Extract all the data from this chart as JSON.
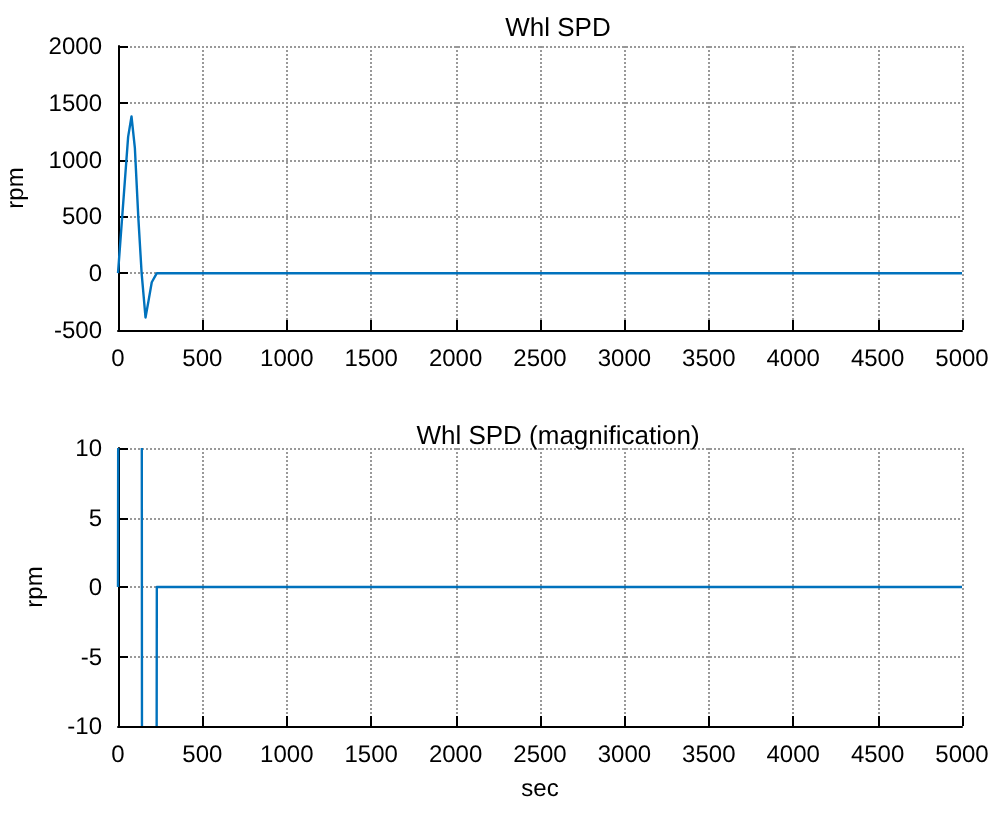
{
  "chart_data": [
    {
      "type": "line",
      "title": "Whl SPD",
      "ylabel": "rpm",
      "x": [
        0,
        20,
        40,
        60,
        80,
        100,
        120,
        140,
        163,
        180,
        200,
        230,
        5000
      ],
      "series": [
        {
          "color": "#0072bd",
          "values": [
            0,
            400,
            800,
            1200,
            1380,
            1100,
            500,
            0,
            -390,
            -250,
            -80,
            0,
            0
          ]
        }
      ],
      "xlim": [
        0,
        5000
      ],
      "xticks": [
        0,
        500,
        1000,
        1500,
        2000,
        2500,
        3000,
        3500,
        4000,
        4500,
        5000
      ],
      "ylim": [
        -500,
        2000
      ],
      "yticks": [
        -500,
        0,
        500,
        1000,
        1500,
        2000
      ],
      "grid": true,
      "marker": "none",
      "line_style": "solid"
    },
    {
      "type": "line",
      "title": "Whl SPD (magnification)",
      "xlabel": "sec",
      "ylabel": "rpm",
      "x": [
        0,
        1,
        100,
        141,
        142,
        180,
        229,
        230,
        5000
      ],
      "series": [
        {
          "color": "#0072bd",
          "values": [
            0,
            10,
            null,
            10,
            -10,
            null,
            -10,
            0,
            0
          ]
        }
      ],
      "xlim": [
        0,
        5000
      ],
      "xticks": [
        0,
        500,
        1000,
        1500,
        2000,
        2500,
        3000,
        3500,
        4000,
        4500,
        5000
      ],
      "ylim": [
        -10,
        10
      ],
      "yticks": [
        -10,
        -5,
        0,
        5,
        10
      ],
      "grid": true,
      "marker": "none",
      "line_style": "solid"
    }
  ]
}
